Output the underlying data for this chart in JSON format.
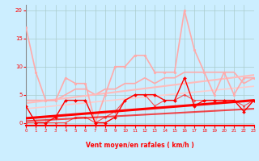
{
  "xlabel": "Vent moyen/en rafales ( km/h )",
  "background_color": "#cceeff",
  "grid_color": "#aacccc",
  "xmin": 0,
  "xmax": 23,
  "ymin": -0.5,
  "ymax": 21,
  "yticks": [
    0,
    5,
    10,
    15,
    20
  ],
  "xticks": [
    0,
    1,
    2,
    3,
    4,
    5,
    6,
    7,
    8,
    9,
    10,
    11,
    12,
    13,
    14,
    15,
    16,
    17,
    18,
    19,
    20,
    21,
    22,
    23
  ],
  "lines": [
    {
      "x": [
        0,
        1,
        2,
        3,
        4,
        5,
        6,
        7,
        8,
        9,
        10,
        11,
        12,
        13,
        14,
        15,
        16,
        17,
        18,
        19,
        20,
        21,
        22,
        23
      ],
      "y": [
        3,
        0,
        0,
        1,
        4,
        4,
        4,
        0,
        0,
        1,
        4,
        5,
        5,
        5,
        4,
        4,
        8,
        3,
        4,
        4,
        4,
        4,
        2,
        4
      ],
      "color": "#ff0000",
      "lw": 1.0,
      "marker": "D",
      "ms": 2.0,
      "alpha": 1.0,
      "zorder": 5
    },
    {
      "x": [
        0,
        1,
        2,
        3,
        4,
        5,
        6,
        7,
        8,
        9,
        10,
        11,
        12,
        13,
        14,
        15,
        16,
        17,
        18,
        19,
        20,
        21,
        22,
        23
      ],
      "y": [
        0,
        0,
        0,
        0,
        0,
        1,
        1,
        0,
        1,
        2,
        4,
        5,
        5,
        3,
        4,
        4,
        5,
        4,
        4,
        4,
        4,
        4,
        3,
        4
      ],
      "color": "#ff3333",
      "lw": 0.8,
      "marker": "D",
      "ms": 1.5,
      "alpha": 0.85,
      "zorder": 4
    },
    {
      "x": [
        0,
        1,
        2,
        3,
        4,
        5,
        6,
        7,
        8,
        9,
        10,
        11,
        12,
        13,
        14,
        15,
        16,
        17,
        18,
        19,
        20,
        21,
        22,
        23
      ],
      "y": [
        17,
        9,
        4,
        4,
        8,
        7,
        7,
        0,
        5,
        10,
        10,
        12,
        12,
        9,
        9,
        9,
        20,
        13,
        9,
        5,
        9,
        5,
        8,
        8
      ],
      "color": "#ffaaaa",
      "lw": 1.2,
      "marker": "o",
      "ms": 2.0,
      "alpha": 1.0,
      "zorder": 3
    },
    {
      "x": [
        0,
        1,
        2,
        3,
        4,
        5,
        6,
        7,
        8,
        9,
        10,
        11,
        12,
        13,
        14,
        15,
        16,
        17,
        18,
        19,
        20,
        21,
        22,
        23
      ],
      "y": [
        4,
        4,
        4,
        4,
        5,
        6,
        6,
        5,
        6,
        6,
        7,
        7,
        8,
        7,
        8,
        8,
        9,
        9,
        9,
        9,
        9,
        9,
        7,
        8
      ],
      "color": "#ffaaaa",
      "lw": 1.2,
      "marker": null,
      "ms": 0,
      "alpha": 1.0,
      "zorder": 2
    },
    {
      "x": [
        0,
        23
      ],
      "y": [
        0.8,
        4.0
      ],
      "color": "#ff0000",
      "lw": 2.2,
      "marker": null,
      "ms": 0,
      "alpha": 1.0,
      "zorder": 6
    },
    {
      "x": [
        0,
        23
      ],
      "y": [
        0.3,
        2.5
      ],
      "color": "#ff0000",
      "lw": 1.5,
      "marker": null,
      "ms": 0,
      "alpha": 0.7,
      "zorder": 6
    },
    {
      "x": [
        0,
        23
      ],
      "y": [
        3.5,
        8.5
      ],
      "color": "#ffbbbb",
      "lw": 1.5,
      "marker": null,
      "ms": 0,
      "alpha": 1.0,
      "zorder": 2
    },
    {
      "x": [
        0,
        23
      ],
      "y": [
        2.5,
        6.5
      ],
      "color": "#ffcccc",
      "lw": 1.2,
      "marker": null,
      "ms": 0,
      "alpha": 1.0,
      "zorder": 2
    }
  ]
}
